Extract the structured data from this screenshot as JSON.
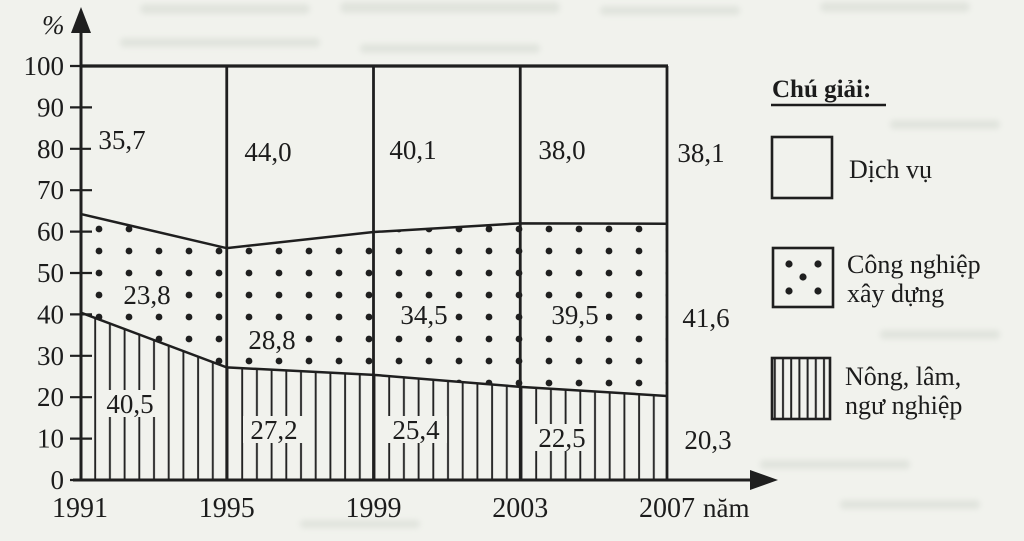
{
  "page": {
    "paper_color": "#f1f2ed",
    "ink_color": "#1c1c1c"
  },
  "chart_data": {
    "type": "area",
    "stacked": true,
    "title": "",
    "x": [
      "1991",
      "1995",
      "1999",
      "2003",
      "2007"
    ],
    "x_axis_label": "năm",
    "y_axis_label": "%",
    "ylim": [
      0,
      100
    ],
    "y_ticks": [
      "0",
      "10",
      "20",
      "30",
      "40",
      "50",
      "60",
      "70",
      "80",
      "90",
      "100"
    ],
    "grid": "vertical separator line at each x value, horizontal top border at 100",
    "legend_position": "right",
    "series": [
      {
        "name": "Nông, lâm, ngư nghiệp",
        "pattern": "vertical-hatch",
        "values": [
          40.5,
          27.2,
          25.4,
          22.5,
          20.3
        ],
        "labels": [
          "40,5",
          "27,2",
          "25,4",
          "22,5",
          "20,3"
        ]
      },
      {
        "name": "Công nghiệp xây dựng",
        "pattern": "dots",
        "values": [
          23.8,
          28.8,
          34.5,
          39.5,
          41.6
        ],
        "labels": [
          "23,8",
          "28,8",
          "34,5",
          "39,5",
          "41,6"
        ]
      },
      {
        "name": "Dịch vụ",
        "pattern": "plain",
        "values": [
          35.7,
          44.0,
          40.1,
          38.0,
          38.1
        ],
        "labels": [
          "35,7",
          "44,0",
          "40,1",
          "38,0",
          "38,1"
        ]
      }
    ],
    "legend": {
      "title": "Chú giải:",
      "items": [
        {
          "label": "Dịch vụ",
          "lines": [
            "Dịch vụ"
          ],
          "pattern": "plain"
        },
        {
          "label": "Công nghiệp xây dựng",
          "lines": [
            "Công nghiệp",
            "xây dựng"
          ],
          "pattern": "dots"
        },
        {
          "label": "Nông, lâm, ngư nghiệp",
          "lines": [
            "Nông, lâm,",
            "ngư nghiệp"
          ],
          "pattern": "vertical-hatch"
        }
      ]
    }
  }
}
